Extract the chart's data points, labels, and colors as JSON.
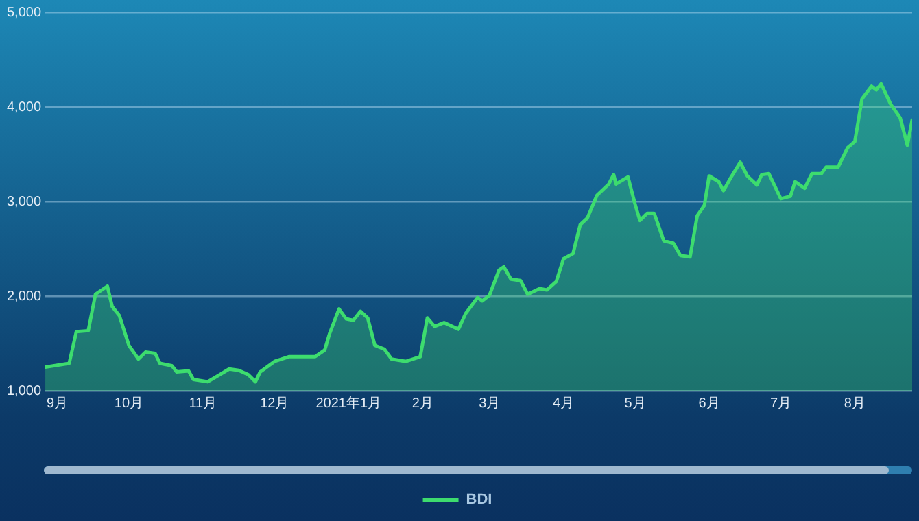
{
  "chart_data": {
    "type": "area",
    "x": [
      "2020-08-27",
      "2020-09-06",
      "2020-09-09",
      "2020-09-14",
      "2020-09-17",
      "2020-09-22",
      "2020-09-24",
      "2020-09-27",
      "2020-10-01",
      "2020-10-05",
      "2020-10-08",
      "2020-10-12",
      "2020-10-14",
      "2020-10-19",
      "2020-10-21",
      "2020-10-26",
      "2020-10-28",
      "2020-11-03",
      "2020-11-08",
      "2020-11-12",
      "2020-11-16",
      "2020-11-20",
      "2020-11-23",
      "2020-11-25",
      "2020-12-01",
      "2020-12-07",
      "2020-12-18",
      "2020-12-22",
      "2020-12-24",
      "2020-12-28",
      "2020-12-31",
      "2021-01-03",
      "2021-01-06",
      "2021-01-09",
      "2021-01-12",
      "2021-01-16",
      "2021-01-19",
      "2021-01-25",
      "2021-01-31",
      "2021-02-03",
      "2021-02-06",
      "2021-02-10",
      "2021-02-16",
      "2021-02-19",
      "2021-02-24",
      "2021-02-26",
      "2021-03-01",
      "2021-03-05",
      "2021-03-07",
      "2021-03-10",
      "2021-03-14",
      "2021-03-17",
      "2021-03-22",
      "2021-03-25",
      "2021-03-29",
      "2021-04-01",
      "2021-04-05",
      "2021-04-08",
      "2021-04-11",
      "2021-04-15",
      "2021-04-20",
      "2021-04-22",
      "2021-04-23",
      "2021-04-28",
      "2021-05-01",
      "2021-05-03",
      "2021-05-06",
      "2021-05-09",
      "2021-05-13",
      "2021-05-17",
      "2021-05-20",
      "2021-05-24",
      "2021-05-27",
      "2021-05-30",
      "2021-06-01",
      "2021-06-05",
      "2021-06-07",
      "2021-06-10",
      "2021-06-14",
      "2021-06-17",
      "2021-06-21",
      "2021-06-23",
      "2021-06-26",
      "2021-07-01",
      "2021-07-05",
      "2021-07-07",
      "2021-07-11",
      "2021-07-14",
      "2021-07-18",
      "2021-07-20",
      "2021-07-25",
      "2021-07-29",
      "2021-08-01",
      "2021-08-04",
      "2021-08-08",
      "2021-08-10",
      "2021-08-12",
      "2021-08-16",
      "2021-08-20",
      "2021-08-23",
      "2021-08-25"
    ],
    "series": [
      {
        "name": "BDI",
        "color": "#3ddc6e",
        "values": [
          1250,
          1290,
          1625,
          1635,
          2020,
          2105,
          1890,
          1795,
          1480,
          1335,
          1410,
          1395,
          1290,
          1265,
          1200,
          1210,
          1120,
          1095,
          1170,
          1230,
          1215,
          1170,
          1095,
          1200,
          1310,
          1360,
          1360,
          1430,
          1600,
          1865,
          1760,
          1745,
          1840,
          1770,
          1480,
          1440,
          1335,
          1310,
          1360,
          1770,
          1680,
          1720,
          1650,
          1815,
          1985,
          1950,
          2010,
          2275,
          2310,
          2180,
          2165,
          2020,
          2080,
          2065,
          2155,
          2395,
          2450,
          2755,
          2825,
          3065,
          3185,
          3285,
          3185,
          3260,
          2970,
          2800,
          2875,
          2875,
          2585,
          2560,
          2430,
          2415,
          2850,
          2960,
          3270,
          3210,
          3115,
          3250,
          3415,
          3270,
          3175,
          3285,
          3295,
          3030,
          3055,
          3210,
          3140,
          3295,
          3295,
          3365,
          3365,
          3570,
          3635,
          4085,
          4220,
          4180,
          4245,
          4030,
          3885,
          3595,
          3860
        ]
      }
    ],
    "xlim": [
      "2020-08-27",
      "2021-08-25"
    ],
    "xticks": [
      {
        "value": "2020-09-01",
        "label": "9月"
      },
      {
        "value": "2020-10-01",
        "label": "10月"
      },
      {
        "value": "2020-11-01",
        "label": "11月"
      },
      {
        "value": "2020-12-01",
        "label": "12月"
      },
      {
        "value": "2021-01-01",
        "label": "2021年1月"
      },
      {
        "value": "2021-02-01",
        "label": "2月"
      },
      {
        "value": "2021-03-01",
        "label": "3月"
      },
      {
        "value": "2021-04-01",
        "label": "4月"
      },
      {
        "value": "2021-05-01",
        "label": "5月"
      },
      {
        "value": "2021-06-01",
        "label": "6月"
      },
      {
        "value": "2021-07-01",
        "label": "7月"
      },
      {
        "value": "2021-08-01",
        "label": "8月"
      }
    ],
    "ylim": [
      1000,
      5000
    ],
    "yticks": [
      {
        "value": 1000,
        "label": "1,000"
      },
      {
        "value": 2000,
        "label": "2,000"
      },
      {
        "value": 3000,
        "label": "3,000"
      },
      {
        "value": 4000,
        "label": "4,000"
      },
      {
        "value": 5000,
        "label": "5,000"
      }
    ],
    "grid": "y",
    "legend": "bottom",
    "marker": "none",
    "line_style": "solid"
  }
}
